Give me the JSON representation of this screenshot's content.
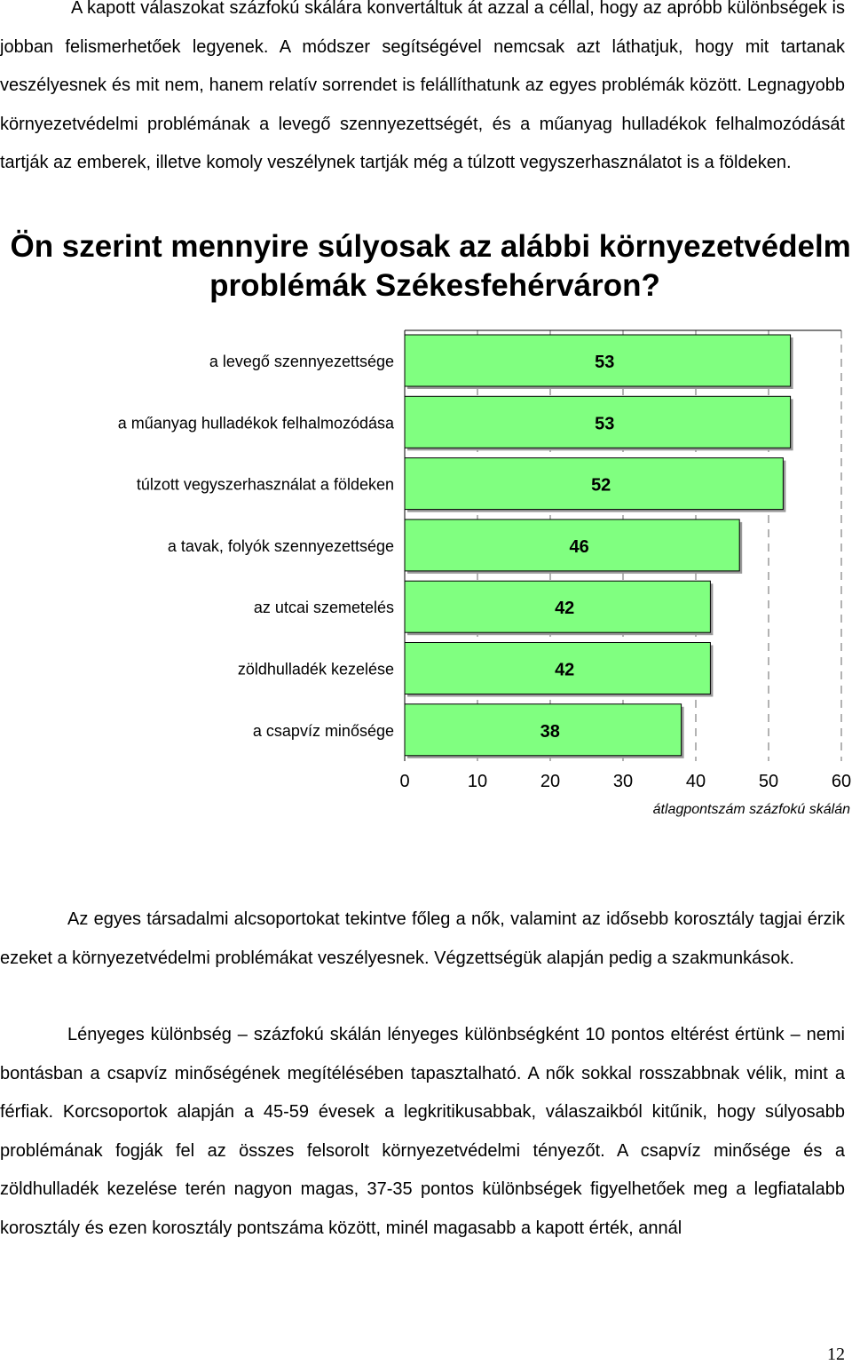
{
  "paragraphs": {
    "top": "A kapott válaszokat százfokú skálára konvertáltuk át azzal a céllal, hogy az apróbb különbségek is jobban felismerhetőek legyenek. A módszer segítségével nemcsak azt láthatjuk, hogy mit tartanak veszélyesnek és mit nem, hanem relatív sorrendet is felállíthatunk az egyes problémák között. Legnagyobb környezetvédelmi problémának a levegő szennyezettségét, és a műanyag hulladékok felhalmozódását tartják az emberek, illetve komoly veszélynek tartják még a túlzott vegyszerhasználatot is a földeken.",
    "mid": "Az egyes társadalmi alcsoportokat tekintve főleg a nők, valamint az idősebb korosztály tagjai érzik ezeket a környezetvédelmi problémákat veszélyesnek. Végzettségük alapján pedig a szakmunkások.",
    "bottom": "Lényeges különbség – százfokú skálán lényeges különbségként 10 pontos eltérést értünk – nemi bontásban a csapvíz minőségének megítélésében tapasztalható. A nők sokkal rosszabbnak vélik, mint a férfiak. Korcsoportok alapján a 45-59 évesek a legkritikusabbak, válaszaikból kitűnik, hogy súlyosabb problémának fogják fel az összes felsorolt környezetvédelmi tényezőt. A csapvíz minősége és a zöldhulladék kezelése terén nagyon magas, 37-35 pontos különbségek figyelhetőek meg a legfiatalabb korosztály és ezen korosztály pontszáma között, minél magasabb a kapott érték, annál"
  },
  "page_number": "12",
  "colors": {
    "bar_fill": "#80ff80",
    "bar_stroke": "#000000",
    "bar_shadow": "#9a9a9a",
    "grid": "#9a9a9a"
  },
  "chart_data": {
    "type": "bar",
    "orientation": "horizontal",
    "title": "Ön szerint mennyire súlyosak az alábbi környezetvédelmi problémák Székesfehérváron?",
    "categories": [
      "a levegő szennyezettsége",
      "a műanyag hulladékok felhalmozódása",
      "túlzott vegyszerhasználat a földeken",
      "a tavak, folyók szennyezettsége",
      "az utcai szemetelés",
      "zöldhulladék kezelése",
      "a csapvíz minősége"
    ],
    "values": [
      53,
      53,
      52,
      46,
      42,
      42,
      38
    ],
    "xlabel": "átlagpontszám százfokú skálán",
    "xlim": [
      0,
      60
    ],
    "xticks": [
      "0",
      "10",
      "20",
      "30",
      "40",
      "50",
      "60"
    ],
    "grid": "vertical dashed",
    "legend": "none"
  }
}
